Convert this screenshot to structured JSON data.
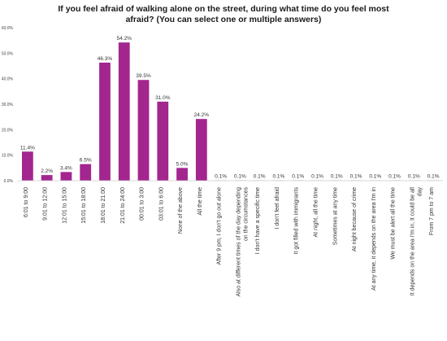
{
  "title_lines": [
    "If you feel afraid of walking alone on the street, during what time do you feel most",
    "afraid? (You can select one or multiple answers)"
  ],
  "chart_data": {
    "type": "bar",
    "title": "If you feel afraid of walking alone on the street, during what time do you feel most afraid? (You can select one or multiple answers)",
    "xlabel": "",
    "ylabel": "",
    "ylim": [
      0,
      60
    ],
    "yticks": [
      "0.0%",
      "10.0%",
      "20.0%",
      "30.0%",
      "40.0%",
      "50.0%",
      "60.0%"
    ],
    "grid": false,
    "legend": "none",
    "bar_color": "#a3268f",
    "categories": [
      "6:01 to 9:00",
      "9:01 to 12:00",
      "12:01 to 15:00",
      "15:01 to 18:00",
      "18:01 to 21:00",
      "21:01 to 24:00",
      "00:01 to 3:00",
      "03:01 to 6:00",
      "None of the above",
      "All the time",
      "After 9 pm, I don't go out alone",
      "Also at different times of the day depending on the circumstances",
      "I don't have a specific time",
      "I don't feel afraid",
      "It got filled with immigrants",
      "At night, all the time",
      "Sometimes at any time",
      "At night because of crime",
      "At any time, it depends on the area I'm in",
      "We must be alert all the time",
      "It depends on the area I'm in, it could be all day",
      "From 7 pm to 7 am"
    ],
    "values": [
      11.4,
      2.2,
      3.4,
      6.5,
      46.3,
      54.2,
      39.5,
      31.0,
      5.0,
      24.2,
      0.1,
      0.1,
      0.1,
      0.1,
      0.1,
      0.1,
      0.1,
      0.1,
      0.1,
      0.1,
      0.1,
      0.1
    ],
    "data_labels": [
      "11.4%",
      "2.2%",
      "3.4%",
      "6.5%",
      "46.3%",
      "54.2%",
      "39.5%",
      "31.0%",
      "5.0%",
      "24.2%",
      "0.1%",
      "0.1%",
      "0.1%",
      "0.1%",
      "0.1%",
      "0.1%",
      "0.1%",
      "0.1%",
      "0.1%",
      "0.1%",
      "0.1%",
      "0.1%"
    ],
    "category_label_lines": [
      [
        "6:01 to 9:00"
      ],
      [
        "9:01 to 12:00"
      ],
      [
        "12:01 to 15:00"
      ],
      [
        "15:01 to 18:00"
      ],
      [
        "18:01 to 21:00"
      ],
      [
        "21:01 to 24:00"
      ],
      [
        "00:01 to 3:00"
      ],
      [
        "03:01 to 6:00"
      ],
      [
        "None of the above"
      ],
      [
        "All the time"
      ],
      [
        "After 9 pm, I don't go out alone"
      ],
      [
        "Also at different times of the day depending",
        "on the circumstances"
      ],
      [
        "I don't have a specific time"
      ],
      [
        "I don't feel afraid"
      ],
      [
        "It got filled with immigrants"
      ],
      [
        "At night, all the time"
      ],
      [
        "Sometimes at any time"
      ],
      [
        "At night because of crime"
      ],
      [
        "At any time, it depends on the area I'm in"
      ],
      [
        "We must be alert all the time"
      ],
      [
        "It depends on the area I'm in, it could be all",
        "day"
      ],
      [
        "From 7 pm to 7 am"
      ]
    ]
  }
}
